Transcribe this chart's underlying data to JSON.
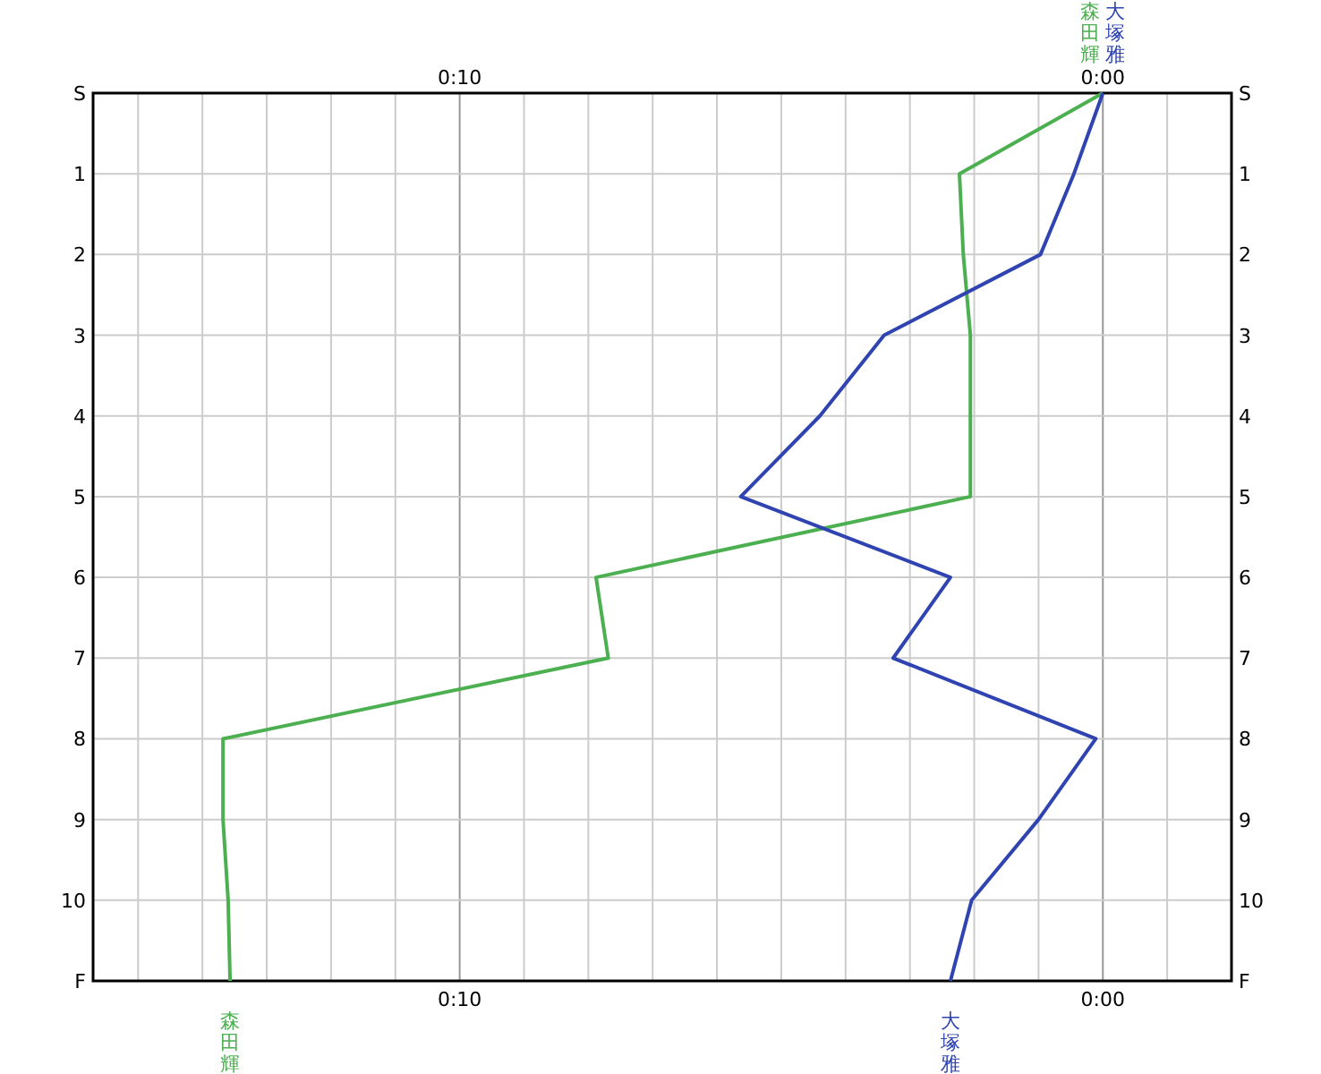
{
  "chart_data": {
    "type": "line",
    "orientation": "horizontal",
    "categories": [
      "S",
      "1",
      "2",
      "3",
      "4",
      "5",
      "6",
      "7",
      "8",
      "9",
      "10",
      "F"
    ],
    "xlim": [
      15.7,
      -2
    ],
    "xticks": [
      {
        "value": 15,
        "label": null
      },
      {
        "value": 14,
        "label": null
      },
      {
        "value": 13,
        "label": null
      },
      {
        "value": 12,
        "label": null
      },
      {
        "value": 11,
        "label": null
      },
      {
        "value": 10,
        "label": "0:10"
      },
      {
        "value": 9,
        "label": null
      },
      {
        "value": 8,
        "label": null
      },
      {
        "value": 7,
        "label": null
      },
      {
        "value": 6,
        "label": null
      },
      {
        "value": 5,
        "label": null
      },
      {
        "value": 4,
        "label": null
      },
      {
        "value": 3,
        "label": null
      },
      {
        "value": 2,
        "label": null
      },
      {
        "value": 1,
        "label": null
      },
      {
        "value": 0,
        "label": "0:00"
      },
      {
        "value": -1,
        "label": null
      }
    ],
    "x2lim": [
      15.7,
      -2
    ],
    "x2ticks": [
      {
        "value": 10,
        "label": "0:10"
      },
      {
        "value": 0,
        "label": "0:00"
      }
    ],
    "grid": true,
    "marker": "none",
    "line_style": "solid",
    "series": [
      {
        "name": "森田輝",
        "color": "#4caf50",
        "values": [
          0,
          2.23,
          2.17,
          2.06,
          2.06,
          2.06,
          7.88,
          7.69,
          13.68,
          13.68,
          13.6,
          13.57
        ]
      },
      {
        "name": "大塚雅",
        "color": "#2f44b0",
        "values": [
          0,
          0.45,
          0.97,
          3.4,
          4.4,
          5.63,
          2.37,
          3.26,
          0.11,
          1.0,
          2.04,
          2.37
        ]
      }
    ]
  }
}
